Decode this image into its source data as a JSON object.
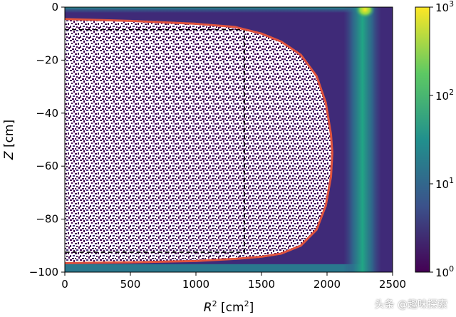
{
  "chart_data": {
    "type": "heatmap",
    "title": "",
    "xlabel_main": "R",
    "xlabel_sup": "2",
    "xlabel_unit_pre": " [cm",
    "xlabel_unit_sup": "2",
    "xlabel_unit_post": "]",
    "ylabel_main": "Z",
    "ylabel_unit": " [cm]",
    "xlim": [
      0,
      2500
    ],
    "ylim": [
      -100,
      0
    ],
    "xticks": [
      0,
      500,
      1000,
      1500,
      2000,
      2500
    ],
    "xtick_labels": [
      "0",
      "500",
      "1000",
      "1500",
      "2000",
      "2500"
    ],
    "yticks": [
      0,
      -20,
      -40,
      -60,
      -80,
      -100
    ],
    "ytick_labels": [
      "0",
      "−20",
      "−40",
      "−60",
      "−80",
      "−100"
    ],
    "colorbar": {
      "scale": "log",
      "ticks": [
        1,
        10,
        100,
        1000
      ],
      "tick_base": "10",
      "tick_exponents": [
        "0",
        "1",
        "2",
        "3"
      ],
      "colormap": "viridis",
      "colors": [
        "#440154",
        "#3b528b",
        "#21908d",
        "#5dc963",
        "#fde725"
      ]
    },
    "density": {
      "band_center_r2": 2270,
      "band_width_r2": 90,
      "hotspot": [
        2290,
        -1
      ],
      "interior_r2_max": 2050,
      "top_edge_z": -2,
      "bottom_edge_z": -97
    },
    "curves": {
      "red_boundary": {
        "color": "#e0533d",
        "points": [
          [
            0,
            -4.5
          ],
          [
            500,
            -5.2
          ],
          [
            1000,
            -6.3
          ],
          [
            1300,
            -7.5
          ],
          [
            1500,
            -10
          ],
          [
            1650,
            -13
          ],
          [
            1800,
            -18
          ],
          [
            1920,
            -26
          ],
          [
            1990,
            -36
          ],
          [
            2030,
            -48
          ],
          [
            2040,
            -55
          ],
          [
            2030,
            -64
          ],
          [
            1990,
            -75
          ],
          [
            1920,
            -84
          ],
          [
            1800,
            -90
          ],
          [
            1650,
            -93
          ],
          [
            1500,
            -94.2
          ],
          [
            1300,
            -95
          ],
          [
            1000,
            -95.8
          ],
          [
            500,
            -96.3
          ],
          [
            0,
            -96.6
          ]
        ]
      },
      "black_dashed_box": {
        "color": "#000000",
        "points": [
          [
            0,
            -8.5
          ],
          [
            1370,
            -8.5
          ],
          [
            1370,
            -92.5
          ],
          [
            0,
            -92.5
          ]
        ]
      }
    }
  },
  "watermark": "头条 @趣味探索"
}
